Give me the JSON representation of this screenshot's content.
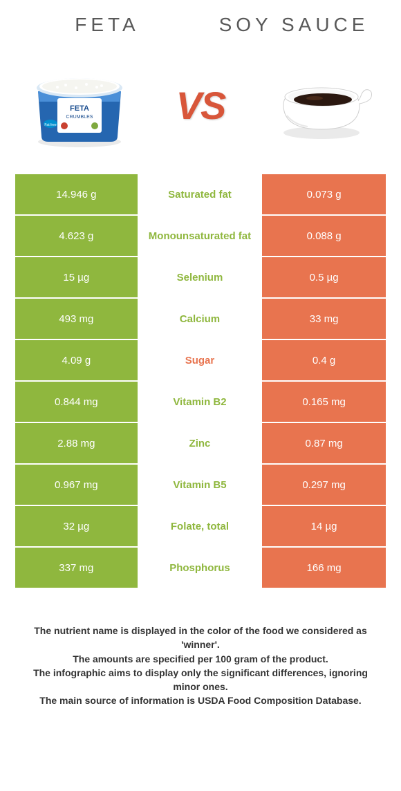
{
  "header": {
    "left_title": "FETA",
    "right_title": "SOY SAUCE",
    "vs_label": "VS"
  },
  "colors": {
    "left_bg": "#8fb73e",
    "right_bg": "#e8744f",
    "mid_bg": "#ffffff",
    "left_text": "#ffffff",
    "right_text": "#ffffff",
    "nutrient_left_color": "#e8744f",
    "nutrient_right_color": "#8fb73e",
    "vs_color": "#d8563a",
    "title_color": "#595959",
    "footer_color": "#333333"
  },
  "table": {
    "rows": [
      {
        "left": "14.946 g",
        "nutrient": "Saturated fat",
        "right": "0.073 g",
        "winner": "left"
      },
      {
        "left": "4.623 g",
        "nutrient": "Monounsaturated fat",
        "right": "0.088 g",
        "winner": "left"
      },
      {
        "left": "15 µg",
        "nutrient": "Selenium",
        "right": "0.5 µg",
        "winner": "left"
      },
      {
        "left": "493 mg",
        "nutrient": "Calcium",
        "right": "33 mg",
        "winner": "left"
      },
      {
        "left": "4.09 g",
        "nutrient": "Sugar",
        "right": "0.4 g",
        "winner": "right"
      },
      {
        "left": "0.844 mg",
        "nutrient": "Vitamin B2",
        "right": "0.165 mg",
        "winner": "left"
      },
      {
        "left": "2.88 mg",
        "nutrient": "Zinc",
        "right": "0.87 mg",
        "winner": "left"
      },
      {
        "left": "0.967 mg",
        "nutrient": "Vitamin B5",
        "right": "0.297 mg",
        "winner": "left"
      },
      {
        "left": "32 µg",
        "nutrient": "Folate, total",
        "right": "14 µg",
        "winner": "left"
      },
      {
        "left": "337 mg",
        "nutrient": "Phosphorus",
        "right": "166 mg",
        "winner": "left"
      }
    ]
  },
  "footer": {
    "line1": "The nutrient name is displayed in the color of the food we considered as 'winner'.",
    "line2": "The amounts are specified per 100 gram of the product.",
    "line3": "The infographic aims to display only the significant differences, ignoring minor ones.",
    "line4": "The main source of information is USDA Food Composition Database."
  }
}
